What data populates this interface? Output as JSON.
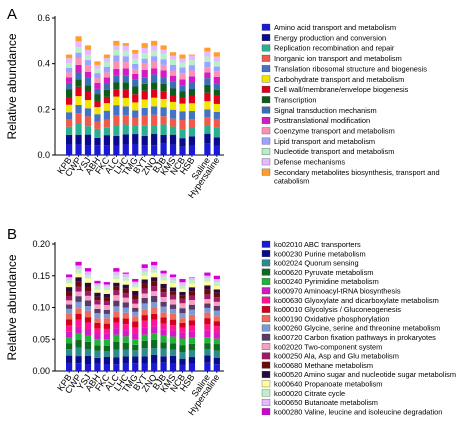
{
  "chart_data": [
    {
      "type": "bar",
      "stacked": true,
      "panel_label": "A",
      "ylabel": "Relative abundance",
      "ylim": [
        0,
        0.6
      ],
      "yticks": [
        "0.0",
        "0.2",
        "0.4",
        "0.6"
      ],
      "categories": [
        "KPB",
        "CWP",
        "YSJ",
        "ABH",
        "FKC",
        "ALC",
        "LHC",
        "TMG",
        "BYT",
        "ZNQ",
        "BJB",
        "KMS",
        "NCB",
        "HSB",
        "Saline",
        "Hypersaline"
      ],
      "totals": [
        0.44,
        0.52,
        0.48,
        0.41,
        0.44,
        0.5,
        0.49,
        0.46,
        0.49,
        0.5,
        0.48,
        0.45,
        0.44,
        0.44,
        0.47,
        0.45
      ],
      "series": [
        {
          "name": "Amino acid transport and metabolism",
          "color": "#1a1ad4"
        },
        {
          "name": "Energy production and conversion",
          "color": "#0a0a8c"
        },
        {
          "name": "Replication recombination and repair",
          "color": "#2bb08f"
        },
        {
          "name": "Inorganic ion transport and metabolism",
          "color": "#f05a4a"
        },
        {
          "name": "Translation ribosomal structure and biogenesis",
          "color": "#4472c4"
        },
        {
          "name": "Carbohydrate transport and metabolism",
          "color": "#f2e600"
        },
        {
          "name": "Cell wall/membrane/envelope biogenesis",
          "color": "#e0001b"
        },
        {
          "name": "Transcription",
          "color": "#0d5c1a"
        },
        {
          "name": "Signal transduction mechanism",
          "color": "#3b6fb5"
        },
        {
          "name": "Posttranslational modification",
          "color": "#d41ac4"
        },
        {
          "name": "Coenzyme transport and metabolism",
          "color": "#ff8fb4"
        },
        {
          "name": "Lipid transport and metabolism",
          "color": "#9aa3ff"
        },
        {
          "name": "Nucleotide transport and metabolism",
          "color": "#b6f0c8"
        },
        {
          "name": "Defense mechanisms",
          "color": "#e5b8ff"
        },
        {
          "name": "Secondary metabolites biosynthesis, transport and catabolism",
          "color": "#ff9e2b"
        }
      ]
    },
    {
      "type": "bar",
      "stacked": true,
      "panel_label": "B",
      "ylabel": "Relative abundance",
      "ylim": [
        0,
        0.2
      ],
      "yticks": [
        "0.00",
        "0.05",
        "0.10",
        "0.15",
        "0.20"
      ],
      "categories": [
        "KPB",
        "CWP",
        "YSJ",
        "ABH",
        "FKC",
        "ALC",
        "LHC",
        "TMG",
        "BYT",
        "ZNQ",
        "BJB",
        "KMS",
        "NCB",
        "HSB",
        "Saline",
        "Hypersaline"
      ],
      "totals": [
        0.152,
        0.172,
        0.162,
        0.142,
        0.14,
        0.162,
        0.155,
        0.145,
        0.168,
        0.172,
        0.158,
        0.152,
        0.145,
        0.148,
        0.155,
        0.15
      ],
      "series": [
        {
          "name": "ko02010 ABC transporters",
          "color": "#1a1ad4"
        },
        {
          "name": "ko00230 Purine metabolism",
          "color": "#0a0a8c"
        },
        {
          "name": "ko02024 Quorum sensing",
          "color": "#2b8c8c"
        },
        {
          "name": "ko00620 Pyruvate metabolism",
          "color": "#0d6b1f"
        },
        {
          "name": "ko00240 Pyrimidine metabolism",
          "color": "#22b33a"
        },
        {
          "name": "ko00970 Aminoacyl-tRNA biosynthesis",
          "color": "#d41ac4"
        },
        {
          "name": "ko00630 Glyoxylate and dicarboxylate metabolism",
          "color": "#ff1493"
        },
        {
          "name": "ko00010 Glycolysis / Gluconeogenesis",
          "color": "#d4001b"
        },
        {
          "name": "ko00190 Oxidative phosphorylation",
          "color": "#f06a5a"
        },
        {
          "name": "ko00260 Glycine, serine and threonine metabolism",
          "color": "#7b9ad6"
        },
        {
          "name": "ko00720 Carbon fixation pathways in prokaryotes",
          "color": "#5a3a6a"
        },
        {
          "name": "ko02020 Two-component system",
          "color": "#f5a0c4"
        },
        {
          "name": "ko00250 Ala, Asp and Glu metabolism",
          "color": "#a01a6a"
        },
        {
          "name": "ko00680 Methane metabolism",
          "color": "#6b0a0a"
        },
        {
          "name": "ko00520 Amino sugar and nucleotide sugar metabolism",
          "color": "#2a0a3a"
        },
        {
          "name": "ko00640 Propanoate metabolism",
          "color": "#ffff99"
        },
        {
          "name": "ko00020 Citrate cycle",
          "color": "#bfeec8"
        },
        {
          "name": "ko00650 Butanoate metabolism",
          "color": "#e5b8ff"
        },
        {
          "name": "ko00280 Valine, leucine and isoleucine degradation",
          "color": "#d400d4"
        }
      ]
    }
  ]
}
